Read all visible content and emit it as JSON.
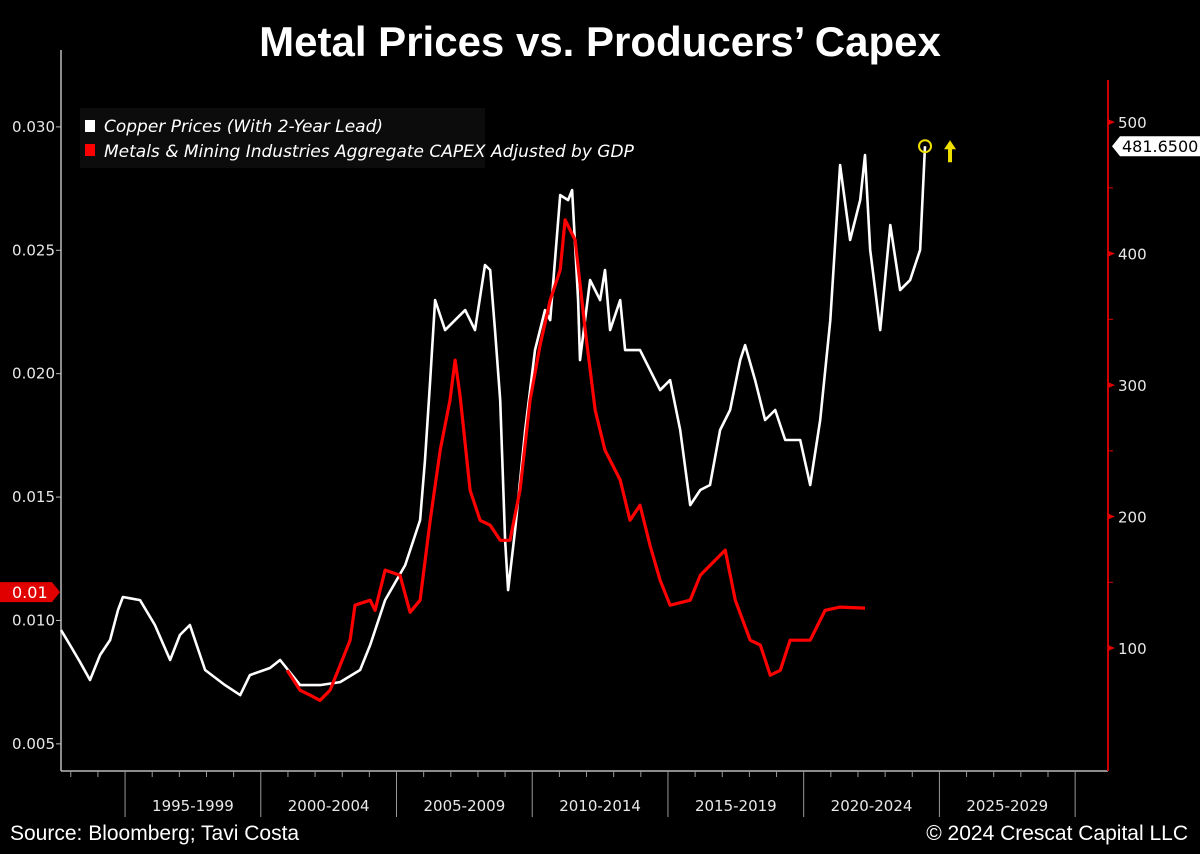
{
  "title": "Metal Prices vs. Producers’ Capex",
  "footer": {
    "source": "Source: Bloomberg; Tavi Costa",
    "copyright": "© 2024 Crescat Capital LLC"
  },
  "chart_data": {
    "type": "line",
    "title": "Metal Prices vs. Producers’ Capex",
    "xlim": [
      1992.64,
      2031.1
    ],
    "x_tick_labels": [
      "1995-1999",
      "2000-2004",
      "2005-2009",
      "2010-2014",
      "2015-2019",
      "2020-2024",
      "2025-2029"
    ],
    "left_axis": {
      "ylim": [
        0.0039,
        0.0319
      ],
      "ticks": [
        0.005,
        0.01,
        0.015,
        0.02,
        0.025,
        0.03
      ],
      "tick_labels": [
        "0.005",
        "0.010",
        "0.015",
        "0.020",
        "0.025",
        "0.030"
      ],
      "last_value_label": "0.01",
      "color": "#ffffff"
    },
    "right_axis": {
      "ylim": [
        6.5,
        532
      ],
      "ticks": [
        100,
        200,
        300,
        400,
        500
      ],
      "tick_labels": [
        "100",
        "200",
        "300",
        "400",
        "500"
      ],
      "last_value_label": "481.6500",
      "color": "#e00000"
    },
    "legend_placement": "top-left",
    "grid": false,
    "annotations": [
      {
        "type": "circle-marker",
        "x": 2024.47,
        "y": 481.65,
        "color": "#f0e000"
      },
      {
        "type": "up-arrow",
        "color": "#f0e000"
      }
    ],
    "series": [
      {
        "name": "Copper Prices (With 2-Year Lead)",
        "axis": "right",
        "color": "#ffffff",
        "points": [
          [
            1992.64,
            113.7
          ],
          [
            1992.97,
            102.3
          ],
          [
            1993.34,
            89.4
          ],
          [
            1993.71,
            75.7
          ],
          [
            1994.08,
            94.7
          ],
          [
            1994.45,
            106.1
          ],
          [
            1994.74,
            128.9
          ],
          [
            1994.92,
            138.8
          ],
          [
            1995.55,
            136.5
          ],
          [
            1996.1,
            117.5
          ],
          [
            1996.66,
            90.9
          ],
          [
            1997.02,
            109.9
          ],
          [
            1997.39,
            117.5
          ],
          [
            1997.95,
            83.3
          ],
          [
            1998.68,
            71.8
          ],
          [
            1999.24,
            64.2
          ],
          [
            1999.6,
            79.4
          ],
          [
            2000.34,
            84.8
          ],
          [
            2000.71,
            90.9
          ],
          [
            2001.45,
            71.8
          ],
          [
            2002.18,
            71.8
          ],
          [
            2002.92,
            74.1
          ],
          [
            2003.66,
            83.3
          ],
          [
            2004.03,
            102.3
          ],
          [
            2004.58,
            136.5
          ],
          [
            2005.32,
            163.1
          ],
          [
            2005.87,
            197.3
          ],
          [
            2006.05,
            243.0
          ],
          [
            2006.24,
            303.8
          ],
          [
            2006.42,
            364.6
          ],
          [
            2006.79,
            341.8
          ],
          [
            2007.16,
            349.4
          ],
          [
            2007.53,
            357.0
          ],
          [
            2007.89,
            341.8
          ],
          [
            2008.26,
            391.3
          ],
          [
            2008.45,
            387.5
          ],
          [
            2008.63,
            341.8
          ],
          [
            2008.82,
            288.6
          ],
          [
            2009.0,
            182.1
          ],
          [
            2009.11,
            144.1
          ],
          [
            2009.37,
            189.7
          ],
          [
            2009.74,
            265.8
          ],
          [
            2010.1,
            326.6
          ],
          [
            2010.47,
            357.0
          ],
          [
            2010.66,
            349.4
          ],
          [
            2011.03,
            444.5
          ],
          [
            2011.32,
            440.7
          ],
          [
            2011.47,
            448.3
          ],
          [
            2011.69,
            364.6
          ],
          [
            2011.76,
            319.0
          ],
          [
            2012.13,
            379.8
          ],
          [
            2012.5,
            364.6
          ],
          [
            2012.68,
            387.5
          ],
          [
            2012.87,
            341.8
          ],
          [
            2013.24,
            364.6
          ],
          [
            2013.42,
            326.6
          ],
          [
            2013.97,
            326.6
          ],
          [
            2014.71,
            296.2
          ],
          [
            2015.08,
            303.8
          ],
          [
            2015.45,
            265.8
          ],
          [
            2015.82,
            208.7
          ],
          [
            2016.19,
            220.2
          ],
          [
            2016.55,
            224.0
          ],
          [
            2016.92,
            265.8
          ],
          [
            2017.29,
            281.0
          ],
          [
            2017.66,
            319.0
          ],
          [
            2017.84,
            330.4
          ],
          [
            2018.21,
            303.8
          ],
          [
            2018.58,
            273.4
          ],
          [
            2018.95,
            281.0
          ],
          [
            2019.32,
            258.2
          ],
          [
            2019.87,
            258.2
          ],
          [
            2020.24,
            224.0
          ],
          [
            2020.61,
            273.4
          ],
          [
            2020.98,
            349.4
          ],
          [
            2021.34,
            467.3
          ],
          [
            2021.71,
            410.3
          ],
          [
            2022.08,
            440.7
          ],
          [
            2022.26,
            474.9
          ],
          [
            2022.45,
            402.7
          ],
          [
            2022.82,
            341.8
          ],
          [
            2023.19,
            421.7
          ],
          [
            2023.55,
            372.2
          ],
          [
            2023.92,
            379.8
          ],
          [
            2024.29,
            402.7
          ],
          [
            2024.47,
            481.65
          ]
        ]
      },
      {
        "name": "Metals & Mining Industries Aggregate CAPEX Adjusted by GDP",
        "axis": "left",
        "color": "#ff0000",
        "points": [
          [
            2000.97,
            0.00798
          ],
          [
            2001.45,
            0.00717
          ],
          [
            2001.82,
            0.00697
          ],
          [
            2002.18,
            0.00676
          ],
          [
            2002.55,
            0.00717
          ],
          [
            2002.92,
            0.00818
          ],
          [
            2003.29,
            0.0092
          ],
          [
            2003.47,
            0.01062
          ],
          [
            2004.03,
            0.01082
          ],
          [
            2004.21,
            0.01041
          ],
          [
            2004.58,
            0.01204
          ],
          [
            2005.13,
            0.01183
          ],
          [
            2005.5,
            0.01033
          ],
          [
            2005.87,
            0.01082
          ],
          [
            2006.24,
            0.01406
          ],
          [
            2006.61,
            0.0169
          ],
          [
            2006.97,
            0.01893
          ],
          [
            2007.16,
            0.02055
          ],
          [
            2007.34,
            0.01913
          ],
          [
            2007.71,
            0.01528
          ],
          [
            2008.08,
            0.01406
          ],
          [
            2008.45,
            0.01386
          ],
          [
            2008.82,
            0.01325
          ],
          [
            2009.18,
            0.01325
          ],
          [
            2009.55,
            0.01528
          ],
          [
            2009.92,
            0.01893
          ],
          [
            2010.29,
            0.02116
          ],
          [
            2010.66,
            0.02298
          ],
          [
            2011.03,
            0.0242
          ],
          [
            2011.21,
            0.02623
          ],
          [
            2011.58,
            0.02542
          ],
          [
            2011.95,
            0.02177
          ],
          [
            2012.32,
            0.01852
          ],
          [
            2012.68,
            0.0169
          ],
          [
            2013.24,
            0.01569
          ],
          [
            2013.6,
            0.01406
          ],
          [
            2013.97,
            0.01467
          ],
          [
            2014.34,
            0.01305
          ],
          [
            2014.71,
            0.01163
          ],
          [
            2015.08,
            0.01062
          ],
          [
            2015.82,
            0.01082
          ],
          [
            2016.19,
            0.01183
          ],
          [
            2016.92,
            0.01264
          ],
          [
            2017.11,
            0.01285
          ],
          [
            2017.48,
            0.01082
          ],
          [
            2018.03,
            0.0092
          ],
          [
            2018.4,
            0.009
          ],
          [
            2018.77,
            0.00778
          ],
          [
            2019.14,
            0.00798
          ],
          [
            2019.5,
            0.0092
          ],
          [
            2020.24,
            0.0092
          ],
          [
            2020.79,
            0.01041
          ],
          [
            2021.34,
            0.01054
          ],
          [
            2022.26,
            0.0105
          ]
        ]
      }
    ]
  }
}
